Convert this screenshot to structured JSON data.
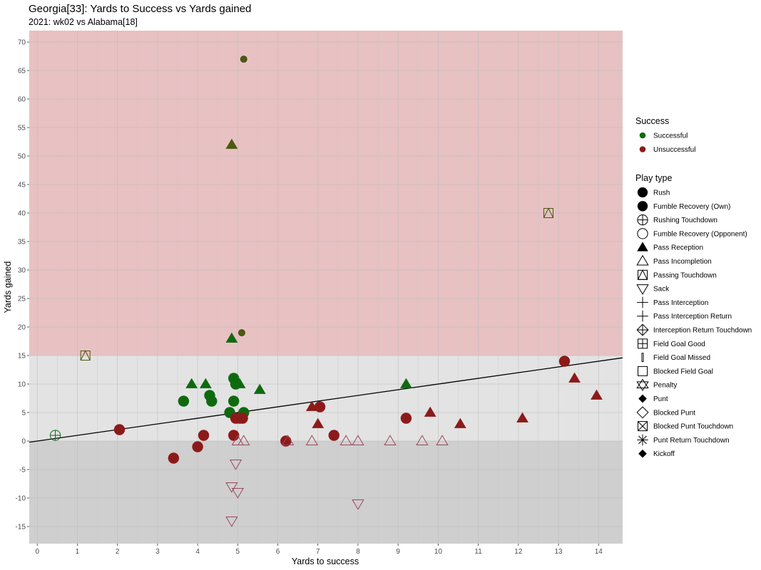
{
  "chart_data": {
    "type": "scatter",
    "title": "Georgia[33]: Yards to Success vs Yards gained",
    "subtitle": "2021: wk02 vs Alabama[18]",
    "xlabel": "Yards to success",
    "ylabel": "Yards gained",
    "xlim": [
      -0.2,
      14.6
    ],
    "ylim": [
      -18,
      72
    ],
    "x_ticks": [
      0,
      1,
      2,
      3,
      4,
      5,
      6,
      7,
      8,
      9,
      10,
      11,
      12,
      13,
      14
    ],
    "y_ticks": [
      -15,
      -10,
      -5,
      0,
      5,
      10,
      15,
      20,
      25,
      30,
      35,
      40,
      45,
      50,
      55,
      60,
      65,
      70
    ],
    "regions": [
      {
        "y_from": 15,
        "y_to": 72,
        "color": "#e8c1c3"
      },
      {
        "y_from": 0,
        "y_to": 15,
        "color": "#e3e3e4"
      },
      {
        "y_from": -18,
        "y_to": 0,
        "color": "#cfcfd0"
      }
    ],
    "fit_line": {
      "x": [
        -0.2,
        14.6
      ],
      "y": [
        -0.2,
        14.6
      ]
    },
    "colors": {
      "Successful": "#0f6a0f",
      "Unsuccessful": "#8c1a1a",
      "big_play": "#4a5a0e",
      "hollow": "#9a4a5a"
    },
    "points": [
      {
        "x": 5.15,
        "y": 67,
        "type": "Rush",
        "color": "big_play"
      },
      {
        "x": 4.85,
        "y": 52,
        "type": "Pass Reception",
        "color": "big_play"
      },
      {
        "x": 12.75,
        "y": 40,
        "type": "Passing Touchdown",
        "color": "big_play"
      },
      {
        "x": 5.1,
        "y": 19,
        "type": "Rush",
        "color": "big_play"
      },
      {
        "x": 4.85,
        "y": 18,
        "type": "Pass Reception",
        "color": "Successful"
      },
      {
        "x": 1.2,
        "y": 15,
        "type": "Passing Touchdown",
        "color": "big_play"
      },
      {
        "x": 0.45,
        "y": 1,
        "type": "Rushing Touchdown",
        "color": "Successful"
      },
      {
        "x": 2.05,
        "y": 2,
        "type": "Rush",
        "color": "Unsuccessful"
      },
      {
        "x": 3.65,
        "y": 7,
        "type": "Rush",
        "color": "Successful"
      },
      {
        "x": 3.85,
        "y": 10,
        "type": "Pass Reception",
        "color": "Successful"
      },
      {
        "x": 4.2,
        "y": 10,
        "type": "Pass Reception",
        "color": "Successful"
      },
      {
        "x": 4.3,
        "y": 8,
        "type": "Rush",
        "color": "Successful"
      },
      {
        "x": 4.35,
        "y": 7,
        "type": "Rush",
        "color": "Successful"
      },
      {
        "x": 4.8,
        "y": 5,
        "type": "Rush",
        "color": "Successful"
      },
      {
        "x": 4.9,
        "y": 11,
        "type": "Rush",
        "color": "Successful"
      },
      {
        "x": 4.95,
        "y": 10,
        "type": "Rush",
        "color": "Successful"
      },
      {
        "x": 5.05,
        "y": 10,
        "type": "Pass Reception",
        "color": "Successful"
      },
      {
        "x": 4.9,
        "y": 7,
        "type": "Rush",
        "color": "Successful"
      },
      {
        "x": 5.15,
        "y": 5,
        "type": "Rush",
        "color": "Successful"
      },
      {
        "x": 5.55,
        "y": 9,
        "type": "Pass Reception",
        "color": "Successful"
      },
      {
        "x": 9.2,
        "y": 10,
        "type": "Pass Reception",
        "color": "Successful"
      },
      {
        "x": 4.95,
        "y": 4,
        "type": "Rush",
        "color": "Unsuccessful"
      },
      {
        "x": 5.05,
        "y": 4,
        "type": "Rush",
        "color": "Unsuccessful"
      },
      {
        "x": 5.12,
        "y": 4,
        "type": "Rush",
        "color": "Unsuccessful"
      },
      {
        "x": 4.9,
        "y": 1,
        "type": "Rush",
        "color": "Unsuccessful"
      },
      {
        "x": 4.15,
        "y": 1,
        "type": "Rush",
        "color": "Unsuccessful"
      },
      {
        "x": 4.0,
        "y": -1,
        "type": "Rush",
        "color": "Unsuccessful"
      },
      {
        "x": 3.4,
        "y": -3,
        "type": "Rush",
        "color": "Unsuccessful"
      },
      {
        "x": 6.85,
        "y": 6,
        "type": "Pass Reception",
        "color": "Unsuccessful"
      },
      {
        "x": 7.05,
        "y": 6,
        "type": "Rush",
        "color": "Unsuccessful"
      },
      {
        "x": 7.0,
        "y": 3,
        "type": "Pass Reception",
        "color": "Unsuccessful"
      },
      {
        "x": 7.4,
        "y": 1,
        "type": "Rush",
        "color": "Unsuccessful"
      },
      {
        "x": 6.2,
        "y": 0,
        "type": "Rush",
        "color": "Unsuccessful"
      },
      {
        "x": 9.2,
        "y": 4,
        "type": "Rush",
        "color": "Unsuccessful"
      },
      {
        "x": 9.8,
        "y": 5,
        "type": "Pass Reception",
        "color": "Unsuccessful"
      },
      {
        "x": 10.55,
        "y": 3,
        "type": "Pass Reception",
        "color": "Unsuccessful"
      },
      {
        "x": 12.1,
        "y": 4,
        "type": "Pass Reception",
        "color": "Unsuccessful"
      },
      {
        "x": 13.15,
        "y": 14,
        "type": "Rush",
        "color": "Unsuccessful"
      },
      {
        "x": 13.4,
        "y": 11,
        "type": "Pass Reception",
        "color": "Unsuccessful"
      },
      {
        "x": 13.95,
        "y": 8,
        "type": "Pass Reception",
        "color": "Unsuccessful"
      },
      {
        "x": 5.0,
        "y": 0,
        "type": "Pass Incompletion",
        "color": "hollow"
      },
      {
        "x": 5.15,
        "y": 0,
        "type": "Pass Incompletion",
        "color": "hollow"
      },
      {
        "x": 6.25,
        "y": 0,
        "type": "Pass Incompletion",
        "color": "hollow"
      },
      {
        "x": 6.85,
        "y": 0,
        "type": "Pass Incompletion",
        "color": "hollow"
      },
      {
        "x": 7.7,
        "y": 0,
        "type": "Pass Incompletion",
        "color": "hollow"
      },
      {
        "x": 8.0,
        "y": 0,
        "type": "Pass Incompletion",
        "color": "hollow"
      },
      {
        "x": 8.8,
        "y": 0,
        "type": "Pass Incompletion",
        "color": "hollow"
      },
      {
        "x": 9.6,
        "y": 0,
        "type": "Pass Incompletion",
        "color": "hollow"
      },
      {
        "x": 10.1,
        "y": 0,
        "type": "Pass Incompletion",
        "color": "hollow"
      },
      {
        "x": 4.95,
        "y": -4,
        "type": "Sack",
        "color": "hollow"
      },
      {
        "x": 4.85,
        "y": -8,
        "type": "Sack",
        "color": "hollow"
      },
      {
        "x": 5.0,
        "y": -9,
        "type": "Sack",
        "color": "hollow"
      },
      {
        "x": 8.0,
        "y": -11,
        "type": "Sack",
        "color": "hollow"
      },
      {
        "x": 4.85,
        "y": -14,
        "type": "Sack",
        "color": "hollow"
      }
    ],
    "legend_success": {
      "title": "Success",
      "items": [
        {
          "label": "Successful",
          "color": "#0f6a0f"
        },
        {
          "label": "Unsuccessful",
          "color": "#8c1a1a"
        }
      ]
    },
    "legend_playtype": {
      "title": "Play type",
      "items": [
        {
          "label": "Rush",
          "shape": "circle-filled"
        },
        {
          "label": "Fumble Recovery (Own)",
          "shape": "circle-filled"
        },
        {
          "label": "Rushing Touchdown",
          "shape": "circle-plus"
        },
        {
          "label": "Fumble Recovery (Opponent)",
          "shape": "circle-open"
        },
        {
          "label": "Pass Reception",
          "shape": "triangle-filled"
        },
        {
          "label": "Pass Incompletion",
          "shape": "triangle-open"
        },
        {
          "label": "Passing Touchdown",
          "shape": "square-triangle"
        },
        {
          "label": "Sack",
          "shape": "triangle-down-open"
        },
        {
          "label": "Pass Interception",
          "shape": "plus"
        },
        {
          "label": "Pass Interception Return",
          "shape": "plus"
        },
        {
          "label": "Interception Return Touchdown",
          "shape": "diamond-plus"
        },
        {
          "label": "Field Goal Good",
          "shape": "square-plus"
        },
        {
          "label": "Field Goal Missed",
          "shape": "bar"
        },
        {
          "label": "Blocked Field Goal",
          "shape": "square-open"
        },
        {
          "label": "Penalty",
          "shape": "star-of-david"
        },
        {
          "label": "Punt",
          "shape": "diamond-filled-small"
        },
        {
          "label": "Blocked Punt",
          "shape": "diamond-open"
        },
        {
          "label": "Blocked Punt Touchdown",
          "shape": "square-x"
        },
        {
          "label": "Punt Return Touchdown",
          "shape": "asterisk"
        },
        {
          "label": "Kickoff",
          "shape": "diamond-filled-small"
        }
      ]
    }
  }
}
